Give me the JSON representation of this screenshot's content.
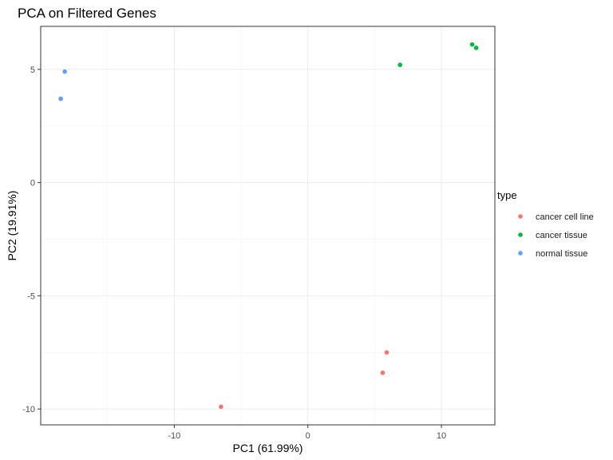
{
  "chart_data": {
    "type": "scatter",
    "title": "PCA on Filtered Genes",
    "xlabel": "PC1 (61.99%)",
    "ylabel": "PC2 (19.91%)",
    "xlim": [
      -20,
      14
    ],
    "ylim": [
      -10.7,
      6.9
    ],
    "xticks": [
      -10,
      0,
      10
    ],
    "yticks": [
      -10,
      -5,
      0,
      5
    ],
    "grid": true,
    "legend": {
      "title": "type",
      "position": "right"
    },
    "series": [
      {
        "name": "cancer cell line",
        "color": "#F8766D",
        "points": [
          {
            "x": -6.5,
            "y": -9.9
          },
          {
            "x": 5.6,
            "y": -8.4
          },
          {
            "x": 5.9,
            "y": -7.5
          }
        ]
      },
      {
        "name": "cancer tissue",
        "color": "#00BA38",
        "points": [
          {
            "x": 6.9,
            "y": 5.2
          },
          {
            "x": 12.3,
            "y": 6.1
          },
          {
            "x": 12.6,
            "y": 5.95
          }
        ]
      },
      {
        "name": "normal tissue",
        "color": "#619CFF",
        "points": [
          {
            "x": -18.2,
            "y": 4.9
          },
          {
            "x": -18.5,
            "y": 3.7
          }
        ]
      }
    ]
  }
}
